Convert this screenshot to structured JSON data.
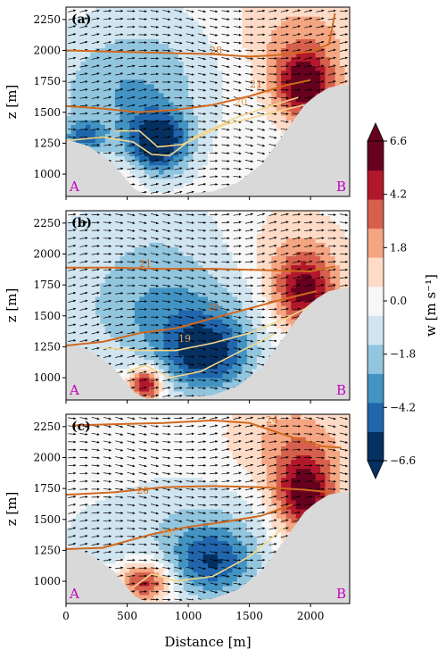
{
  "figure": {
    "xlabel": "Distance [m]",
    "ylabel": "z [m]",
    "colorbar_label": "w [m s⁻¹]",
    "corner_left": "A",
    "corner_right": "B"
  },
  "colors": {
    "terrain": "#d9d9d9",
    "contour_thick": "#d2691e",
    "contour_thin": "#f4d68a",
    "corner_label": "#c000c0"
  },
  "chart_data": {
    "type": "heatmap",
    "x_range": [
      0,
      2320
    ],
    "y_range": [
      820,
      2350
    ],
    "x_ticks": [
      0,
      500,
      1000,
      1500,
      2000
    ],
    "y_ticks": [
      1000,
      1250,
      1500,
      1750,
      2000,
      2250
    ],
    "colorbar": {
      "min": -6.6,
      "max": 6.6,
      "ticks": [
        "6.6",
        "4.2",
        "1.8",
        "0.0",
        "−1.8",
        "−4.2",
        "−6.6"
      ],
      "levels": [
        -6.6,
        -5.4,
        -4.2,
        -3.0,
        -1.8,
        -0.6,
        0.6,
        1.8,
        3.0,
        4.2,
        5.4,
        6.6
      ],
      "colors": [
        "#053061",
        "#2166ac",
        "#4393c3",
        "#92c5de",
        "#d1e5f0",
        "#f7f7f7",
        "#fddbc7",
        "#f4a582",
        "#d6604d",
        "#b2182b",
        "#67001f"
      ]
    },
    "terrain": [
      [
        0,
        1280
      ],
      [
        180,
        1230
      ],
      [
        380,
        1090
      ],
      [
        560,
        880
      ],
      [
        660,
        830
      ],
      [
        800,
        835
      ],
      [
        1000,
        845
      ],
      [
        1200,
        860
      ],
      [
        1400,
        930
      ],
      [
        1600,
        1080
      ],
      [
        1800,
        1350
      ],
      [
        1950,
        1560
      ],
      [
        2050,
        1640
      ],
      [
        2150,
        1700
      ],
      [
        2250,
        1720
      ],
      [
        2320,
        1720
      ]
    ],
    "panels": [
      {
        "label": "(a)",
        "contour_labels": [
          "28",
          "21",
          "20"
        ],
        "blobs": [
          {
            "x": 750,
            "z": 1250,
            "w": -6.5,
            "sx": 180,
            "sz": 180
          },
          {
            "x": 500,
            "z": 1650,
            "w": -2.8,
            "sx": 450,
            "sz": 300
          },
          {
            "x": 150,
            "z": 1300,
            "w": -4.0,
            "sx": 120,
            "sz": 100
          },
          {
            "x": 700,
            "z": 2100,
            "w": -1.0,
            "sx": 500,
            "sz": 250
          },
          {
            "x": 1950,
            "z": 1720,
            "w": 6.5,
            "sx": 180,
            "sz": 200
          },
          {
            "x": 1900,
            "z": 2150,
            "w": 2.0,
            "sx": 400,
            "sz": 250
          },
          {
            "x": 550,
            "z": 1000,
            "w": 1.0,
            "sx": 100,
            "sz": 100
          }
        ],
        "contours": [
          {
            "level": "28",
            "thick": true,
            "pts": [
              [
                0,
                2000
              ],
              [
                400,
                1990
              ],
              [
                800,
                1980
              ],
              [
                1200,
                1970
              ],
              [
                1500,
                1950
              ],
              [
                1700,
                1960
              ],
              [
                2000,
                1990
              ],
              [
                2150,
                2050
              ],
              [
                2200,
                2300
              ]
            ]
          },
          {
            "level": "21",
            "thick": true,
            "pts": [
              [
                0,
                1550
              ],
              [
                300,
                1530
              ],
              [
                600,
                1500
              ],
              [
                900,
                1520
              ],
              [
                1200,
                1560
              ],
              [
                1500,
                1630
              ],
              [
                1800,
                1720
              ],
              [
                2000,
                1760
              ]
            ]
          },
          {
            "level": "20",
            "thick": false,
            "pts": [
              [
                0,
                1270
              ],
              [
                300,
                1300
              ],
              [
                550,
                1260
              ],
              [
                700,
                1160
              ],
              [
                850,
                1150
              ],
              [
                1050,
                1300
              ],
              [
                1400,
                1460
              ],
              [
                1700,
                1560
              ],
              [
                1900,
                1620
              ]
            ]
          },
          {
            "level": "",
            "thick": false,
            "pts": [
              [
                400,
                1350
              ],
              [
                600,
                1350
              ],
              [
                750,
                1220
              ],
              [
                950,
                1240
              ],
              [
                1300,
                1400
              ],
              [
                1700,
                1500
              ],
              [
                1950,
                1560
              ]
            ]
          }
        ]
      },
      {
        "label": "(b)",
        "contour_labels": [
          "21",
          "20",
          "19"
        ],
        "blobs": [
          {
            "x": 1150,
            "z": 1180,
            "w": -5.5,
            "sx": 260,
            "sz": 220
          },
          {
            "x": 800,
            "z": 1550,
            "w": -3.2,
            "sx": 500,
            "sz": 300
          },
          {
            "x": 650,
            "z": 950,
            "w": 6.3,
            "sx": 90,
            "sz": 90
          },
          {
            "x": 1950,
            "z": 1700,
            "w": 6.0,
            "sx": 190,
            "sz": 220
          },
          {
            "x": 700,
            "z": 2150,
            "w": -1.2,
            "sx": 600,
            "sz": 250
          },
          {
            "x": 1800,
            "z": 2100,
            "w": 1.3,
            "sx": 350,
            "sz": 250
          }
        ],
        "contours": [
          {
            "level": "21",
            "thick": true,
            "pts": [
              [
                0,
                1890
              ],
              [
                400,
                1890
              ],
              [
                800,
                1880
              ],
              [
                1200,
                1880
              ],
              [
                1600,
                1870
              ],
              [
                2000,
                1860
              ],
              [
                2200,
                1900
              ]
            ]
          },
          {
            "level": "",
            "thick": true,
            "pts": [
              [
                0,
                1260
              ],
              [
                300,
                1290
              ],
              [
                600,
                1360
              ],
              [
                900,
                1400
              ],
              [
                1200,
                1480
              ],
              [
                1500,
                1560
              ],
              [
                1800,
                1640
              ],
              [
                2050,
                1700
              ]
            ]
          },
          {
            "level": "20",
            "thick": false,
            "pts": [
              [
                300,
                1240
              ],
              [
                600,
                1220
              ],
              [
                900,
                1220
              ],
              [
                1200,
                1280
              ],
              [
                1500,
                1360
              ],
              [
                1800,
                1480
              ],
              [
                2000,
                1580
              ]
            ]
          },
          {
            "level": "19",
            "thick": false,
            "pts": [
              [
                500,
                1050
              ],
              [
                650,
                1100
              ],
              [
                850,
                1000
              ],
              [
                1100,
                1050
              ],
              [
                1400,
                1200
              ],
              [
                1700,
                1350
              ]
            ]
          }
        ]
      },
      {
        "label": "(c)",
        "contour_labels": [
          "24",
          "20",
          "19"
        ],
        "blobs": [
          {
            "x": 1200,
            "z": 1150,
            "w": -5.0,
            "sx": 250,
            "sz": 200
          },
          {
            "x": 650,
            "z": 1000,
            "w": 4.8,
            "sx": 140,
            "sz": 110
          },
          {
            "x": 1950,
            "z": 1700,
            "w": 6.3,
            "sx": 180,
            "sz": 230
          },
          {
            "x": 1850,
            "z": 2150,
            "w": 2.2,
            "sx": 350,
            "sz": 250
          },
          {
            "x": 1000,
            "z": 1500,
            "w": -1.6,
            "sx": 500,
            "sz": 250
          },
          {
            "x": 300,
            "z": 1350,
            "w": -1.2,
            "sx": 200,
            "sz": 150
          }
        ],
        "contours": [
          {
            "level": "24",
            "thick": true,
            "pts": [
              [
                50,
                2260
              ],
              [
                400,
                2270
              ],
              [
                800,
                2280
              ],
              [
                1200,
                2300
              ],
              [
                1500,
                2280
              ],
              [
                1800,
                2180
              ],
              [
                2100,
                2090
              ],
              [
                2250,
                2080
              ]
            ]
          },
          {
            "level": "20",
            "thick": true,
            "pts": [
              [
                0,
                1700
              ],
              [
                400,
                1720
              ],
              [
                800,
                1760
              ],
              [
                1200,
                1770
              ],
              [
                1600,
                1760
              ],
              [
                1950,
                1740
              ],
              [
                2150,
                1720
              ]
            ]
          },
          {
            "level": "",
            "thick": true,
            "pts": [
              [
                0,
                1260
              ],
              [
                300,
                1270
              ],
              [
                700,
                1380
              ],
              [
                1000,
                1440
              ],
              [
                1300,
                1480
              ],
              [
                1600,
                1530
              ],
              [
                1850,
                1620
              ]
            ]
          },
          {
            "level": "19",
            "thick": false,
            "pts": [
              [
                550,
                950
              ],
              [
                700,
                1060
              ],
              [
                900,
                1000
              ],
              [
                1200,
                1040
              ],
              [
                1500,
                1200
              ],
              [
                1800,
                1450
              ]
            ]
          }
        ]
      }
    ]
  }
}
